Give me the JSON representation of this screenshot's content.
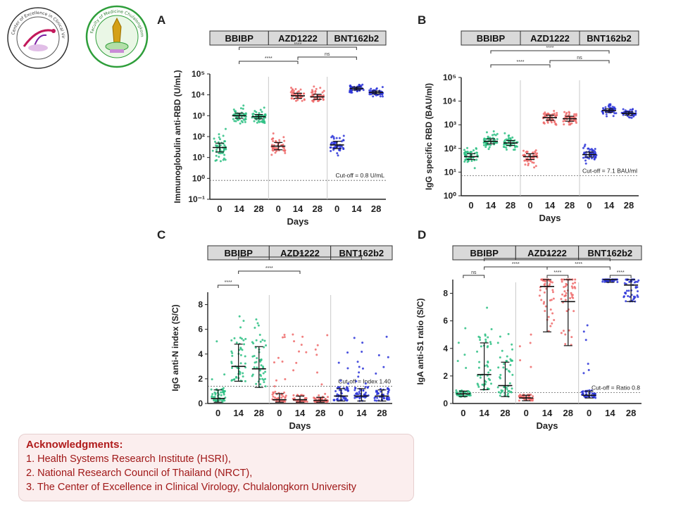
{
  "logos": {
    "left_text": "Center of Excellence in Clinical Virology",
    "right_text": "Faculty of Medicine Chulalongkorn University"
  },
  "colors": {
    "BBIBP": "#2bbf82",
    "AZD1222": "#ef6a6a",
    "BNT162b2": "#2a32d8"
  },
  "panels": [
    {
      "id": "A",
      "letter": "A",
      "ylabel": "Immunoglobulin anti-RBD (U/mL)",
      "xlabel": "Days",
      "scale": "log",
      "yticks": [
        "10⁻¹",
        "10⁰",
        "10¹",
        "10²",
        "10³",
        "10⁴",
        "10⁵"
      ],
      "groups": [
        "BBIBP",
        "AZD1222",
        "BNT162b2"
      ],
      "cutoff_label": "Cut-off = 0.8 U/mL",
      "cutoff": 0.8,
      "brackets": [
        {
          "label": "****"
        },
        {
          "label": "****"
        },
        {
          "label": "ns"
        }
      ]
    },
    {
      "id": "B",
      "letter": "B",
      "ylabel": "IgG specific RBD (BAU/ml)",
      "xlabel": "Days",
      "scale": "log",
      "yticks": [
        "10⁰",
        "10¹",
        "10²",
        "10³",
        "10⁴",
        "10⁵"
      ],
      "groups": [
        "BBIBP",
        "AZD1222",
        "BNT162b2"
      ],
      "cutoff_label": "Cut-off = 7.1 BAU/ml",
      "cutoff": 7.1,
      "brackets": [
        {
          "label": "****"
        },
        {
          "label": "****"
        },
        {
          "label": "ns"
        }
      ]
    },
    {
      "id": "C",
      "letter": "C",
      "ylabel": "IgG anti-N index (S/C)",
      "xlabel": "Days",
      "scale": "linear",
      "yticks": [
        "0",
        "2",
        "4",
        "6",
        "8"
      ],
      "groups": [
        "BBIBP",
        "AZD1222",
        "BNT162b2"
      ],
      "cutoff_label": "Cut-off = Index 1.40",
      "cutoff": 1.4,
      "brackets": [
        {
          "label": "****"
        },
        {
          "label": "****"
        },
        {
          "label": "****"
        }
      ]
    },
    {
      "id": "D",
      "letter": "D",
      "ylabel": "IgA anti-S1 ratio (S/C)",
      "xlabel": "Days",
      "scale": "linear",
      "yticks": [
        "0",
        "2",
        "4",
        "6",
        "8"
      ],
      "groups": [
        "BBIBP",
        "AZD1222",
        "BNT162b2"
      ],
      "cutoff_label": "Cut-off = Ratio 0.8",
      "cutoff": 0.8,
      "brackets": [
        {
          "label": "ns"
        },
        {
          "label": "****"
        },
        {
          "label": "****"
        },
        {
          "label": "****"
        },
        {
          "label": "****"
        },
        {
          "label": "****"
        }
      ]
    }
  ],
  "chart_data": [
    {
      "type": "scatter",
      "title": "A",
      "ylabel": "Immunoglobulin anti-RBD (U/mL)",
      "xlabel": "Days",
      "yscale": "log",
      "ylim": [
        0.1,
        100000
      ],
      "categories": [
        "0",
        "14",
        "28",
        "0",
        "14",
        "28",
        "0",
        "14",
        "28"
      ],
      "series": [
        {
          "name": "BBIBP",
          "days": [
            "0",
            "14",
            "28"
          ],
          "medians": [
            30,
            1000,
            900
          ],
          "spread_log": [
            0.6,
            0.35,
            0.3
          ]
        },
        {
          "name": "AZD1222",
          "days": [
            "0",
            "14",
            "28"
          ],
          "medians": [
            35,
            9000,
            8000
          ],
          "spread_log": [
            0.5,
            0.35,
            0.35
          ]
        },
        {
          "name": "BNT162b2",
          "days": [
            "0",
            "14",
            "28"
          ],
          "medians": [
            40,
            20000,
            13000
          ],
          "spread_log": [
            0.5,
            0.2,
            0.2
          ]
        }
      ],
      "cutoff": 0.8
    },
    {
      "type": "scatter",
      "title": "B",
      "ylabel": "IgG specific RBD (BAU/ml)",
      "xlabel": "Days",
      "yscale": "log",
      "ylim": [
        1,
        100000
      ],
      "categories": [
        "0",
        "14",
        "28",
        "0",
        "14",
        "28",
        "0",
        "14",
        "28"
      ],
      "series": [
        {
          "name": "BBIBP",
          "days": [
            "0",
            "14",
            "28"
          ],
          "medians": [
            45,
            200,
            170
          ],
          "spread_log": [
            0.35,
            0.3,
            0.3
          ]
        },
        {
          "name": "AZD1222",
          "days": [
            "0",
            "14",
            "28"
          ],
          "medians": [
            45,
            2000,
            1800
          ],
          "spread_log": [
            0.35,
            0.3,
            0.3
          ]
        },
        {
          "name": "BNT162b2",
          "days": [
            "0",
            "14",
            "28"
          ],
          "medians": [
            55,
            4000,
            3000
          ],
          "spread_log": [
            0.3,
            0.2,
            0.2
          ]
        }
      ],
      "cutoff": 7.1
    },
    {
      "type": "scatter",
      "title": "C",
      "ylabel": "IgG anti-N index (S/C)",
      "xlabel": "Days",
      "yscale": "linear",
      "ylim": [
        0,
        9
      ],
      "categories": [
        "0",
        "14",
        "28",
        "0",
        "14",
        "28",
        "0",
        "14",
        "28"
      ],
      "series": [
        {
          "name": "BBIBP",
          "days": [
            "0",
            "14",
            "28"
          ],
          "medians": [
            0.4,
            3.0,
            2.8
          ],
          "iqr": [
            [
              0.1,
              1.1
            ],
            [
              1.8,
              4.8
            ],
            [
              1.3,
              4.6
            ]
          ]
        },
        {
          "name": "AZD1222",
          "days": [
            "0",
            "14",
            "28"
          ],
          "medians": [
            0.3,
            0.3,
            0.25
          ],
          "iqr": [
            [
              0.1,
              0.8
            ],
            [
              0.1,
              0.6
            ],
            [
              0.1,
              0.5
            ]
          ]
        },
        {
          "name": "BNT162b2",
          "days": [
            "0",
            "14",
            "28"
          ],
          "medians": [
            0.6,
            0.6,
            0.6
          ],
          "iqr": [
            [
              0.2,
              1.2
            ],
            [
              0.2,
              1.2
            ],
            [
              0.2,
              1.1
            ]
          ]
        }
      ],
      "cutoff": 1.4
    },
    {
      "type": "scatter",
      "title": "D",
      "ylabel": "IgA anti-S1 ratio (S/C)",
      "xlabel": "Days",
      "yscale": "linear",
      "ylim": [
        0,
        9
      ],
      "categories": [
        "0",
        "14",
        "28",
        "0",
        "14",
        "28",
        "0",
        "14",
        "28"
      ],
      "series": [
        {
          "name": "BBIBP",
          "days": [
            "0",
            "14",
            "28"
          ],
          "medians": [
            0.7,
            2.1,
            1.3
          ],
          "iqr": [
            [
              0.5,
              0.9
            ],
            [
              1.0,
              4.4
            ],
            [
              0.5,
              3.0
            ]
          ]
        },
        {
          "name": "AZD1222",
          "days": [
            "0",
            "14",
            "28"
          ],
          "medians": [
            0.4,
            8.5,
            7.4
          ],
          "iqr": [
            [
              0.2,
              0.6
            ],
            [
              5.2,
              9.0
            ],
            [
              4.2,
              9.0
            ]
          ]
        },
        {
          "name": "BNT162b2",
          "days": [
            "0",
            "14",
            "28"
          ],
          "medians": [
            0.6,
            9.0,
            8.6
          ],
          "iqr": [
            [
              0.4,
              0.9
            ],
            [
              8.8,
              9.0
            ],
            [
              7.4,
              9.0
            ]
          ]
        }
      ],
      "cutoff": 0.8
    }
  ],
  "acknowledgments": {
    "title": "Acknowledgments:",
    "lines": [
      "1. Health Systems Research Institute (HSRI),",
      "2. National Research Council of Thailand (NRCT),",
      "3. The Center of Excellence in Clinical Virology, Chulalongkorn University"
    ]
  }
}
